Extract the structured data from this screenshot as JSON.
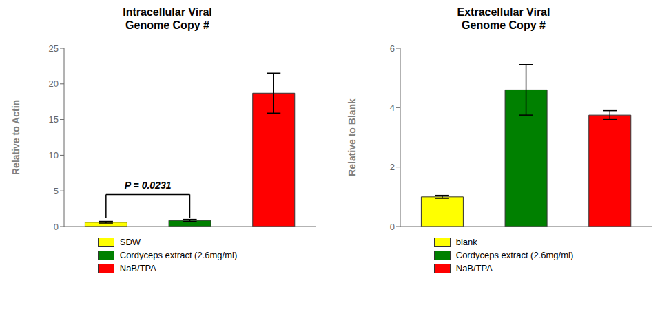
{
  "chart_data": [
    {
      "type": "bar",
      "title": "Intracellular Viral\nGenome Copy #",
      "ylabel": "Relative to Actin",
      "categories": [
        "SDW",
        "Cordyceps extract (2.6mg/ml)",
        "NaB/TPA"
      ],
      "values": [
        0.6,
        0.85,
        18.7
      ],
      "errors": [
        0.12,
        0.15,
        2.8
      ],
      "colors": [
        "#FFFF00",
        "#008000",
        "#FF0000"
      ],
      "ylim": [
        0,
        25
      ],
      "yticks": [
        0,
        5,
        10,
        15,
        20,
        25
      ],
      "grid": false,
      "legend": "bottom",
      "tick_labels": "y",
      "annotations": [
        {
          "text": "P = 0.0231",
          "x": [
            "SDW",
            "Cordyceps extract (2.6mg/ml)"
          ],
          "y": [
            1.2,
            4.5
          ]
        }
      ]
    },
    {
      "type": "bar",
      "title": "Extracellular Viral\nGenome Copy #",
      "ylabel": "Relative to Blank",
      "categories": [
        "blank",
        "Cordyceps extract (2.6mg/ml)",
        "NaB/TPA"
      ],
      "values": [
        1.0,
        4.6,
        3.75
      ],
      "errors": [
        0.05,
        0.85,
        0.15
      ],
      "colors": [
        "#FFFF00",
        "#008000",
        "#FF0000"
      ],
      "ylim": [
        0,
        6
      ],
      "yticks": [
        0,
        2,
        4,
        6
      ],
      "grid": false,
      "legend": "bottom",
      "tick_labels": "y"
    }
  ]
}
